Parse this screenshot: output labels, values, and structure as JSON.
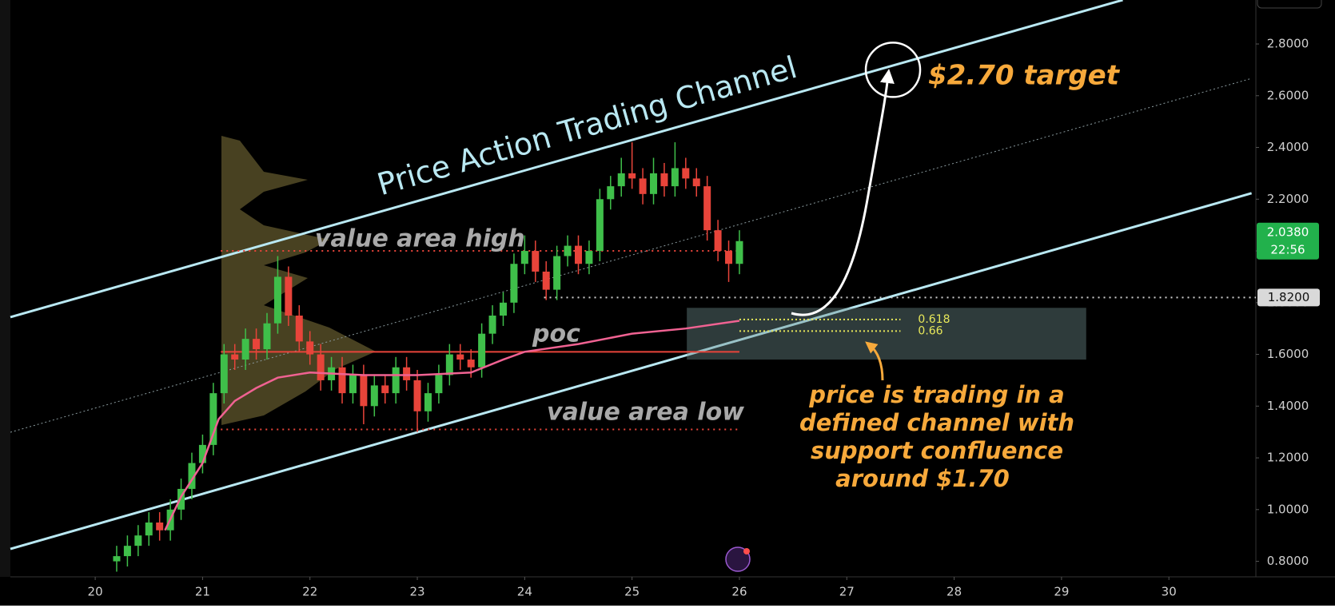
{
  "chart_data": {
    "type": "candlestick",
    "title": "Price Action Trading Channel",
    "x": [
      20.2,
      20.3,
      20.4,
      20.5,
      20.6,
      20.7,
      20.8,
      20.9,
      21.0,
      21.1,
      21.2,
      21.3,
      21.4,
      21.5,
      21.6,
      21.7,
      21.8,
      21.9,
      22.0,
      22.1,
      22.2,
      22.3,
      22.4,
      22.5,
      22.6,
      22.7,
      22.8,
      22.9,
      23.0,
      23.1,
      23.2,
      23.3,
      23.4,
      23.5,
      23.6,
      23.7,
      23.8,
      23.9,
      24.0,
      24.1,
      24.2,
      24.3,
      24.4,
      24.5,
      24.6,
      24.7,
      24.8,
      24.9,
      25.0,
      25.1,
      25.2,
      25.3,
      25.4,
      25.5,
      25.6,
      25.7,
      25.8,
      25.9,
      26.0
    ],
    "open": [
      0.8,
      0.82,
      0.86,
      0.9,
      0.95,
      0.92,
      1.0,
      1.08,
      1.18,
      1.25,
      1.45,
      1.6,
      1.58,
      1.66,
      1.62,
      1.72,
      1.9,
      1.75,
      1.65,
      1.6,
      1.5,
      1.55,
      1.45,
      1.52,
      1.4,
      1.48,
      1.45,
      1.55,
      1.5,
      1.38,
      1.45,
      1.52,
      1.6,
      1.58,
      1.55,
      1.68,
      1.75,
      1.8,
      1.95,
      2.0,
      1.92,
      1.85,
      1.98,
      2.02,
      1.95,
      2.0,
      2.2,
      2.25,
      2.3,
      2.28,
      2.22,
      2.3,
      2.25,
      2.32,
      2.28,
      2.25,
      2.08,
      2.0,
      1.95
    ],
    "high": [
      0.86,
      0.9,
      0.94,
      0.99,
      0.99,
      1.04,
      1.12,
      1.22,
      1.29,
      1.49,
      1.64,
      1.64,
      1.7,
      1.7,
      1.76,
      1.98,
      1.94,
      1.79,
      1.69,
      1.64,
      1.59,
      1.59,
      1.56,
      1.56,
      1.52,
      1.52,
      1.59,
      1.59,
      1.54,
      1.49,
      1.56,
      1.64,
      1.64,
      1.62,
      1.72,
      1.79,
      1.84,
      1.99,
      2.06,
      2.04,
      1.96,
      2.02,
      2.06,
      2.06,
      2.04,
      2.24,
      2.29,
      2.36,
      2.42,
      2.32,
      2.36,
      2.34,
      2.42,
      2.36,
      2.32,
      2.29,
      2.12,
      2.04,
      2.08
    ],
    "low": [
      0.76,
      0.78,
      0.82,
      0.86,
      0.88,
      0.88,
      0.96,
      1.04,
      1.14,
      1.21,
      1.41,
      1.54,
      1.54,
      1.58,
      1.58,
      1.68,
      1.71,
      1.61,
      1.56,
      1.46,
      1.46,
      1.41,
      1.41,
      1.33,
      1.36,
      1.41,
      1.41,
      1.46,
      1.3,
      1.34,
      1.41,
      1.48,
      1.54,
      1.51,
      1.51,
      1.64,
      1.71,
      1.76,
      1.91,
      1.88,
      1.81,
      1.81,
      1.94,
      1.91,
      1.91,
      1.96,
      2.16,
      2.21,
      2.24,
      2.18,
      2.18,
      2.21,
      2.21,
      2.24,
      2.21,
      2.04,
      1.96,
      1.88,
      1.91
    ],
    "close": [
      0.82,
      0.86,
      0.9,
      0.95,
      0.92,
      1.0,
      1.08,
      1.18,
      1.25,
      1.45,
      1.6,
      1.58,
      1.66,
      1.62,
      1.72,
      1.9,
      1.75,
      1.65,
      1.6,
      1.5,
      1.55,
      1.45,
      1.52,
      1.4,
      1.48,
      1.45,
      1.55,
      1.5,
      1.38,
      1.45,
      1.52,
      1.6,
      1.58,
      1.55,
      1.68,
      1.75,
      1.8,
      1.95,
      2.0,
      1.92,
      1.85,
      1.98,
      2.02,
      1.95,
      2.0,
      2.2,
      2.25,
      2.3,
      2.28,
      2.22,
      2.3,
      2.25,
      2.32,
      2.28,
      2.25,
      2.08,
      2.0,
      1.95,
      2.038
    ],
    "up_color": "#3fbf4a",
    "down_color": "#e8443a",
    "vwap": {
      "color": "#f06292",
      "x": [
        20.65,
        20.8,
        21.0,
        21.15,
        21.3,
        21.5,
        21.7,
        22.0,
        22.5,
        23.0,
        23.5,
        23.8,
        24.0,
        24.5,
        25.0,
        25.5,
        26.0
      ],
      "values": [
        0.92,
        1.05,
        1.18,
        1.35,
        1.42,
        1.47,
        1.51,
        1.53,
        1.52,
        1.52,
        1.53,
        1.58,
        1.61,
        1.64,
        1.68,
        1.7,
        1.73
      ]
    },
    "channel": {
      "color": "#b9e8f2",
      "upper": [
        [
          19.21,
          1.744
        ],
        [
          29.57,
          2.97
        ]
      ],
      "lower": [
        [
          19.21,
          0.848
        ],
        [
          30.77,
          2.223
        ]
      ],
      "middle": [
        [
          19.21,
          1.299
        ],
        [
          30.77,
          2.667
        ]
      ]
    },
    "levels": [
      {
        "label": "value area high",
        "value": 2.0,
        "x": [
          21.17,
          26.0
        ],
        "color": "#e8443a",
        "dashed": true,
        "label_at": "line"
      },
      {
        "label": "poc",
        "value": 1.61,
        "x": [
          21.17,
          26.0
        ],
        "color": "#e8443a",
        "dashed": false,
        "label_at": "line"
      },
      {
        "label": "value area low",
        "value": 1.31,
        "x": [
          21.17,
          26.0
        ],
        "color": "#e8443a",
        "dashed": true,
        "label_at": "line"
      },
      {
        "label": "1.8200",
        "value": 1.82,
        "x": [
          24.18,
          30.81
        ],
        "color": "#cfcfcf",
        "dashed": true,
        "label_at": "axis"
      }
    ],
    "fib": {
      "zone": [
        1.58,
        1.78
      ],
      "x": [
        25.51,
        29.23
      ],
      "line_x": [
        26.0,
        27.5
      ],
      "color": "#e8e85a",
      "levels": [
        {
          "label": "0.618",
          "value": 1.735
        },
        {
          "label": "0.66",
          "value": 1.69
        }
      ]
    },
    "target": {
      "label": "$2.70 target",
      "x": 27.43,
      "value": 2.7
    },
    "note": [
      "price is trading in a",
      "defined channel with",
      "support confluence",
      "around $1.70"
    ],
    "last_price": {
      "value": 2.038,
      "label": "2.0380"
    },
    "countdown": "22:56",
    "xlim": [
      19.21,
      30.81
    ],
    "ylim": [
      0.74,
      2.97
    ],
    "xticks": [
      20,
      21,
      22,
      23,
      24,
      25,
      26,
      27,
      28,
      29,
      30
    ],
    "yticks": [
      {
        "value": 0.8,
        "label": "0.8000"
      },
      {
        "value": 1.0,
        "label": "1.0000"
      },
      {
        "value": 1.2,
        "label": "1.2000"
      },
      {
        "value": 1.4,
        "label": "1.4000"
      },
      {
        "value": 1.6,
        "label": "1.6000"
      },
      {
        "value": 1.8,
        "label": "1.8000"
      },
      {
        "value": 2.0,
        "label": "2.0000"
      },
      {
        "value": 2.2,
        "label": "2.2000"
      },
      {
        "value": 2.4,
        "label": "2.4000"
      },
      {
        "value": 2.6,
        "label": "2.6000"
      },
      {
        "value": 2.8,
        "label": "2.8000"
      }
    ]
  }
}
